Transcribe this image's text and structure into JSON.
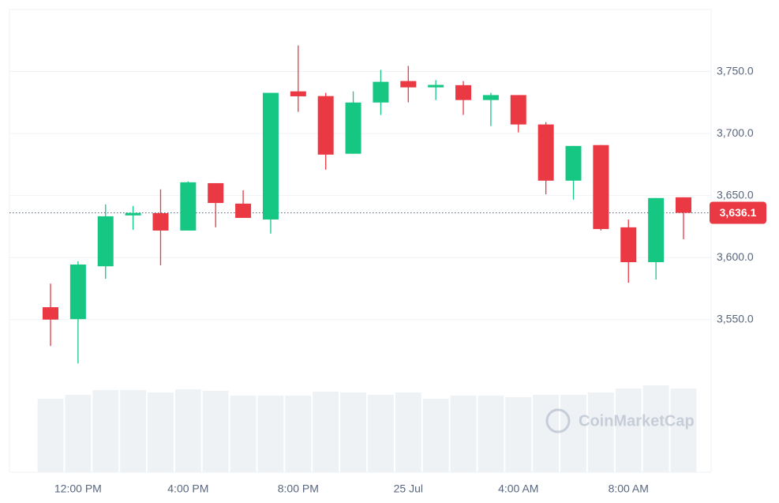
{
  "chart_data": {
    "type": "candlestick",
    "categories": [
      null,
      "12:00 PM",
      null,
      null,
      null,
      "4:00 PM",
      null,
      null,
      null,
      "8:00 PM",
      null,
      null,
      null,
      "25 Jul",
      null,
      null,
      null,
      "4:00 AM",
      null,
      null,
      null,
      "8:00 AM",
      null,
      null
    ],
    "open": [
      3560,
      3550.4,
      3593,
      3634,
      3635.8,
      3621.8,
      3660,
      3643.5,
      3630.7,
      3734,
      3730.2,
      3683.7,
      3725,
      3742.3,
      3737.2,
      3739,
      3727,
      3731,
      3707.3,
      3662,
      3690.7,
      3624.4,
      3596.3,
      3648.6
    ],
    "high": [
      3579,
      3597,
      3642.9,
      3641.6,
      3655,
      3661.4,
      3660,
      3654.3,
      3732.8,
      3771,
      3732.8,
      3734,
      3751.3,
      3754.5,
      3743,
      3742.3,
      3732.8,
      3731,
      3709.2,
      3690,
      3690.7,
      3630.7,
      3648,
      3648.6
    ],
    "low": [
      3528.7,
      3514.7,
      3582.9,
      3622.4,
      3593.8,
      3621.8,
      3624.4,
      3632,
      3619.3,
      3717.5,
      3670.9,
      3683.7,
      3715,
      3725.1,
      3727,
      3715,
      3706,
      3700.9,
      3651,
      3646.7,
      3621.8,
      3579.7,
      3582.3,
      3614.8
    ],
    "close": [
      3550,
      3594.4,
      3633.3,
      3636,
      3621.8,
      3660.7,
      3644,
      3632,
      3732.8,
      3730,
      3683,
      3725,
      3741.7,
      3737.2,
      3739.2,
      3727,
      3731,
      3707.3,
      3662,
      3690,
      3623,
      3596.3,
      3648,
      3636.1
    ],
    "volume": [
      93,
      98,
      104,
      104,
      101,
      105,
      103,
      97,
      97,
      97,
      102,
      101,
      98,
      101,
      93,
      97,
      97,
      95,
      98,
      98,
      101,
      106,
      110,
      106
    ],
    "up_color": "#16c784",
    "down_color": "#ea3943",
    "volume_color": "#eff2f5",
    "ylim": [
      3427,
      3800
    ],
    "yticks": [
      {
        "value": 3550,
        "label": "3,550.0"
      },
      {
        "value": 3600,
        "label": "3,600.0"
      },
      {
        "value": 3650,
        "label": "3,650.0"
      },
      {
        "value": 3700,
        "label": "3,700.0"
      },
      {
        "value": 3750,
        "label": "3,750.0"
      }
    ],
    "grid": true,
    "current_price": {
      "value": 3636.1,
      "label": "3,636.1"
    },
    "watermark": "CoinMarketCap"
  }
}
